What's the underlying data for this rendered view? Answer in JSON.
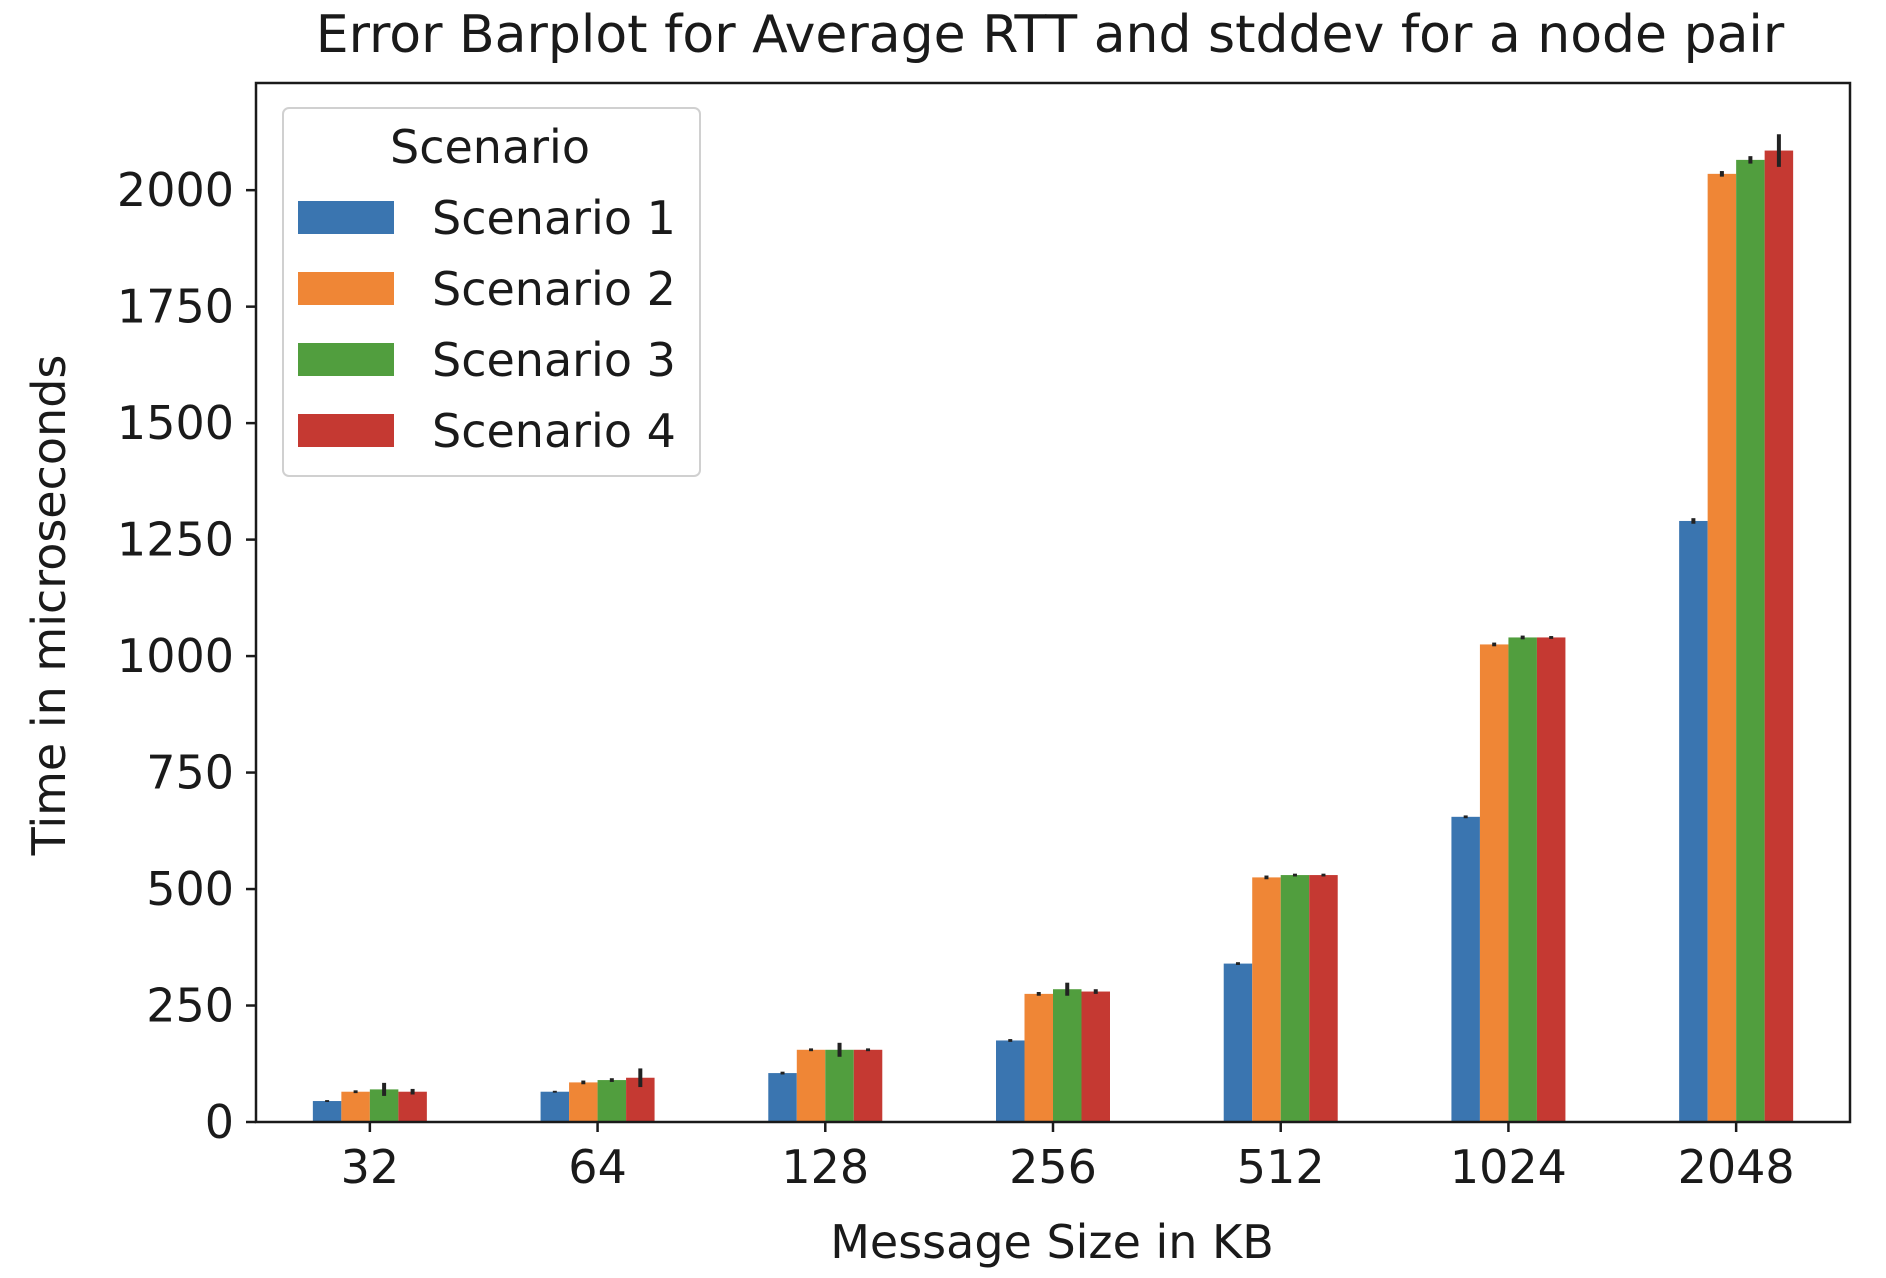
{
  "chart_data": {
    "type": "bar",
    "title": "Error Barplot for Average RTT and stddev for a node pair",
    "xlabel": "Message Size in KB",
    "ylabel": "Time in microseconds",
    "categories": [
      "32",
      "64",
      "128",
      "256",
      "512",
      "1024",
      "2048"
    ],
    "ylim": [
      0,
      2230
    ],
    "yticks": [
      0,
      250,
      500,
      750,
      1000,
      1250,
      1500,
      1750,
      2000
    ],
    "legend": {
      "title": "Scenario",
      "placement": "top-left"
    },
    "grid": false,
    "series": [
      {
        "name": "Scenario 1",
        "color": "#3a75b0",
        "values": [
          45,
          65,
          105,
          175,
          340,
          655,
          1290
        ],
        "errors": [
          2,
          2,
          3,
          3,
          3,
          3,
          6
        ]
      },
      {
        "name": "Scenario 2",
        "color": "#ef8636",
        "values": [
          65,
          85,
          155,
          275,
          525,
          1025,
          2035
        ],
        "errors": [
          3,
          4,
          3,
          4,
          4,
          4,
          6
        ]
      },
      {
        "name": "Scenario 3",
        "color": "#519e3e",
        "values": [
          70,
          90,
          155,
          285,
          530,
          1040,
          2065
        ],
        "errors": [
          14,
          4,
          15,
          14,
          3,
          4,
          8
        ]
      },
      {
        "name": "Scenario 4",
        "color": "#c53932",
        "values": [
          65,
          95,
          155,
          280,
          530,
          1040,
          2085
        ],
        "errors": [
          6,
          20,
          3,
          5,
          3,
          3,
          35
        ]
      }
    ]
  }
}
